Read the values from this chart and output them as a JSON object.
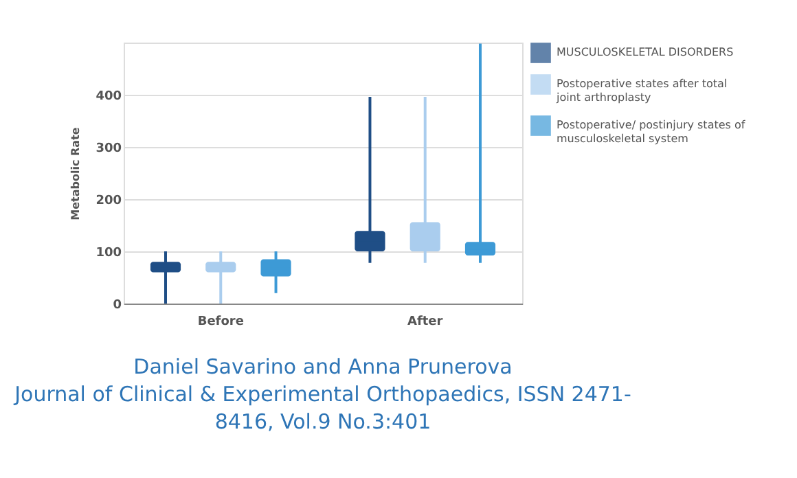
{
  "chart_data": {
    "type": "box",
    "ylabel": "Metabolic Rate",
    "categories": [
      "Before",
      "After"
    ],
    "series": [
      {
        "name": "MUSCULOSKELETAL DISORDERS",
        "color": "#1f4e86",
        "boxes": [
          {
            "low": 0,
            "q1": 60,
            "median": 70,
            "q3": 80,
            "high": 100
          },
          {
            "low": 78,
            "q1": 100,
            "median": 120,
            "q3": 139,
            "high": 396
          }
        ]
      },
      {
        "name": "Postoperative states after total joint arthroplasty",
        "color": "#aacdee",
        "boxes": [
          {
            "low": 0,
            "q1": 60,
            "median": 70,
            "q3": 80,
            "high": 100
          },
          {
            "low": 78,
            "q1": 100,
            "median": 128,
            "q3": 156,
            "high": 396
          }
        ]
      },
      {
        "name": "Postoperative/ postinjury states of musculoskeletal system",
        "color": "#3d9ad6",
        "boxes": [
          {
            "low": 20,
            "q1": 52,
            "median": 68,
            "q3": 85,
            "high": 100
          },
          {
            "low": 78,
            "q1": 92,
            "median": 105,
            "q3": 118,
            "high": 498
          }
        ]
      }
    ],
    "ylim": [
      0,
      500
    ],
    "yticks": [
      0,
      100,
      200,
      300,
      400
    ],
    "grid": "y",
    "legend": "right",
    "annotations": [
      "Daniel Savarino and Anna Prunerova",
      "Journal of Clinical & Experimental Orthopaedics, ISSN 2471-",
      "8416, Vol.9 No.3:401"
    ]
  }
}
